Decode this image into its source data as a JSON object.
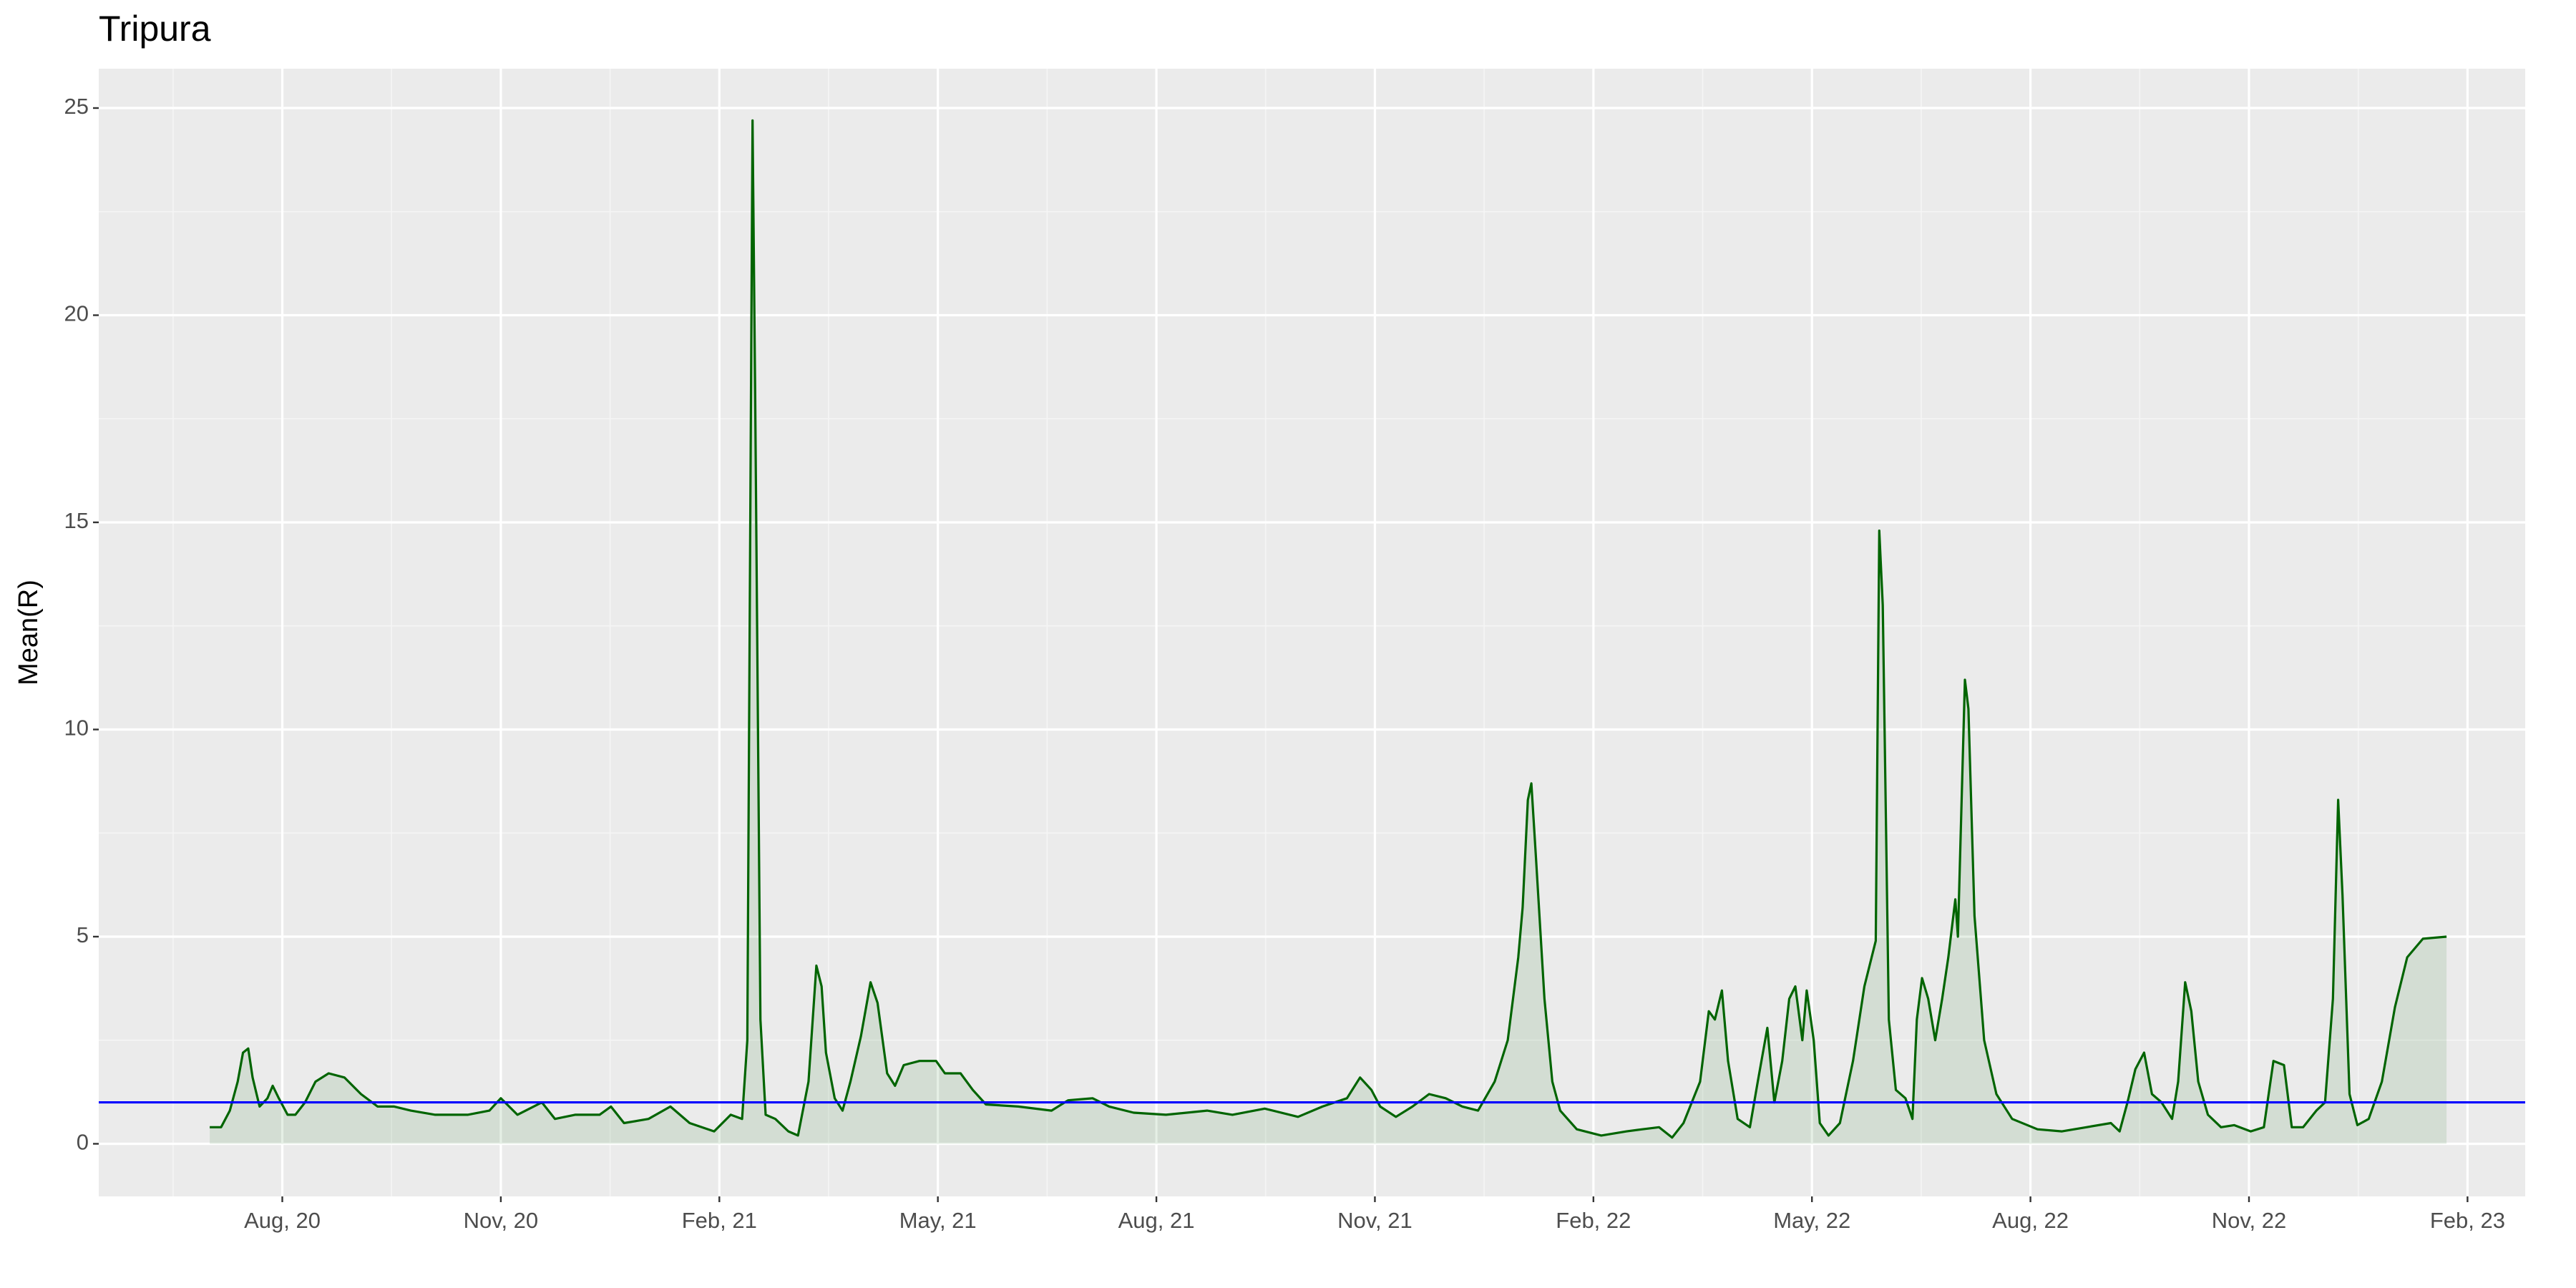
{
  "chart_data": {
    "type": "area-line",
    "title": "Tripura",
    "y_label": "Mean(R)",
    "x": [
      2020.5,
      2020.513,
      2020.523,
      2020.532,
      2020.538,
      2020.544,
      2020.549,
      2020.557,
      2020.566,
      2020.572,
      2020.579,
      2020.589,
      2020.598,
      2020.609,
      2020.621,
      2020.636,
      2020.654,
      2020.673,
      2020.692,
      2020.711,
      2020.73,
      2020.758,
      2020.795,
      2020.82,
      2020.833,
      2020.852,
      2020.88,
      2020.895,
      2020.918,
      2020.946,
      2020.959,
      2020.974,
      2021.002,
      2021.027,
      2021.049,
      2021.077,
      2021.096,
      2021.109,
      2021.115,
      2021.121,
      2021.124,
      2021.13,
      2021.136,
      2021.147,
      2021.162,
      2021.173,
      2021.185,
      2021.194,
      2021.2,
      2021.205,
      2021.215,
      2021.224,
      2021.233,
      2021.245,
      2021.256,
      2021.264,
      2021.275,
      2021.284,
      2021.294,
      2021.312,
      2021.331,
      2021.341,
      2021.359,
      2021.373,
      2021.388,
      2021.425,
      2021.463,
      2021.482,
      2021.51,
      2021.529,
      2021.557,
      2021.594,
      2021.641,
      2021.67,
      2021.707,
      2021.745,
      2021.773,
      2021.801,
      2021.816,
      2021.829,
      2021.839,
      2021.857,
      2021.876,
      2021.895,
      2021.914,
      2021.933,
      2021.951,
      2021.97,
      2021.985,
      2021.997,
      2022.002,
      2022.008,
      2022.012,
      2022.017,
      2022.027,
      2022.036,
      2022.045,
      2022.064,
      2022.092,
      2022.121,
      2022.139,
      2022.158,
      2022.173,
      2022.186,
      2022.205,
      2022.215,
      2022.222,
      2022.23,
      2022.237,
      2022.248,
      2022.262,
      2022.271,
      2022.282,
      2022.29,
      2022.299,
      2022.307,
      2022.314,
      2022.322,
      2022.327,
      2022.335,
      2022.342,
      2022.352,
      2022.365,
      2022.38,
      2022.393,
      2022.406,
      2022.41,
      2022.414,
      2022.421,
      2022.429,
      2022.44,
      2022.448,
      2022.453,
      2022.459,
      2022.466,
      2022.474,
      2022.482,
      2022.489,
      2022.497,
      2022.5,
      2022.508,
      2022.512,
      2022.519,
      2022.53,
      2022.544,
      2022.562,
      2022.591,
      2022.619,
      2022.647,
      2022.675,
      2022.685,
      2022.694,
      2022.703,
      2022.713,
      2022.722,
      2022.733,
      2022.745,
      2022.752,
      2022.76,
      2022.767,
      2022.775,
      2022.786,
      2022.801,
      2022.816,
      2022.835,
      2022.85,
      2022.861,
      2022.873,
      2022.882,
      2022.895,
      2022.91,
      2022.92,
      2022.929,
      2022.935,
      2022.94,
      2022.948,
      2022.957,
      2022.97,
      2022.985,
      2023.0,
      2023.014,
      2023.032,
      2023.059
    ],
    "series": [
      {
        "color": "#006400",
        "values": [
          0.4,
          0.4,
          0.8,
          1.5,
          2.2,
          2.3,
          1.6,
          0.9,
          1.1,
          1.4,
          1.1,
          0.7,
          0.7,
          1.0,
          1.5,
          1.7,
          1.6,
          1.2,
          0.9,
          0.9,
          0.8,
          0.7,
          0.7,
          0.8,
          1.1,
          0.7,
          1.0,
          0.6,
          0.7,
          0.7,
          0.9,
          0.5,
          0.6,
          0.9,
          0.5,
          0.3,
          0.7,
          0.6,
          2.5,
          24.7,
          18,
          3,
          0.7,
          0.6,
          0.3,
          0.2,
          1.5,
          4.3,
          3.8,
          2.2,
          1.1,
          0.8,
          1.5,
          2.6,
          3.9,
          3.4,
          1.7,
          1.4,
          1.9,
          2.0,
          2.0,
          1.7,
          1.7,
          1.3,
          0.95,
          0.9,
          0.8,
          1.05,
          1.1,
          0.9,
          0.75,
          0.7,
          0.8,
          0.7,
          0.85,
          0.65,
          0.9,
          1.1,
          1.6,
          1.3,
          0.9,
          0.65,
          0.9,
          1.2,
          1.1,
          0.9,
          0.8,
          1.5,
          2.5,
          4.5,
          5.7,
          8.3,
          8.7,
          7,
          3.5,
          1.5,
          0.8,
          0.35,
          0.2,
          0.3,
          0.35,
          0.4,
          0.15,
          0.5,
          1.5,
          3.2,
          3.0,
          3.7,
          2.0,
          0.6,
          0.4,
          1.5,
          2.8,
          1.0,
          2.0,
          3.5,
          3.8,
          2.5,
          3.7,
          2.5,
          0.5,
          0.2,
          0.5,
          2.0,
          3.8,
          4.9,
          14.8,
          13,
          3,
          1.3,
          1.1,
          0.6,
          3.0,
          4.0,
          3.5,
          2.5,
          3.5,
          4.5,
          5.9,
          5.0,
          11.2,
          10.5,
          5.5,
          2.5,
          1.2,
          0.6,
          0.35,
          0.3,
          0.4,
          0.5,
          0.3,
          1.0,
          1.8,
          2.2,
          1.2,
          1.0,
          0.6,
          1.5,
          3.9,
          3.2,
          1.5,
          0.7,
          0.4,
          0.45,
          0.3,
          0.4,
          2.0,
          1.9,
          0.4,
          0.4,
          0.8,
          1.0,
          3.5,
          8.3,
          6,
          1.2,
          0.45,
          0.6,
          1.5,
          3.3,
          4.5,
          4.95,
          5.0
        ]
      }
    ],
    "hline": {
      "value": 1,
      "color": "#0000ff"
    },
    "xlim": [
      2020.373,
      2023.149
    ],
    "xticks": [
      {
        "value": 2020.583,
        "label": "Aug, 20"
      },
      {
        "value": 2020.833,
        "label": "Nov, 20"
      },
      {
        "value": 2021.083,
        "label": "Feb, 21"
      },
      {
        "value": 2021.333,
        "label": "May, 21"
      },
      {
        "value": 2021.583,
        "label": "Aug, 21"
      },
      {
        "value": 2021.833,
        "label": "Nov, 21"
      },
      {
        "value": 2022.083,
        "label": "Feb, 22"
      },
      {
        "value": 2022.333,
        "label": "May, 22"
      },
      {
        "value": 2022.583,
        "label": "Aug, 22"
      },
      {
        "value": 2022.833,
        "label": "Nov, 22"
      },
      {
        "value": 2023.083,
        "label": "Feb, 23"
      }
    ],
    "ylim": [
      -1.27,
      25.95
    ],
    "yticks": [
      0,
      5,
      10,
      15,
      20,
      25
    ],
    "grid": true
  }
}
